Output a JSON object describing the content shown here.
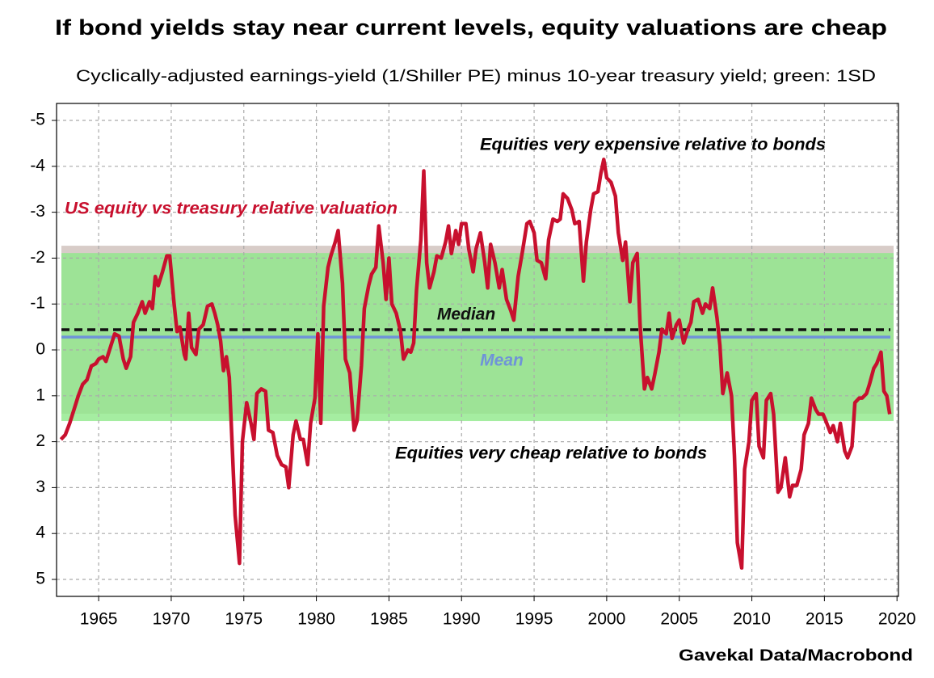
{
  "chart_data": {
    "type": "line",
    "title": "If bond yields stay near current levels, equity valuations are cheap",
    "subtitle": "Cyclically-adjusted earnings-yield (1/Shiller PE) minus 10-year treasury yield; green: 1SD",
    "source": "Gavekal Data/Macrobond",
    "annotations": [
      "Equities very expensive relative to bonds",
      "Equities very cheap relative to bonds"
    ],
    "xlim": [
      1962.1,
      2020.1
    ],
    "xticks": [
      1965,
      1970,
      1975,
      1980,
      1985,
      1990,
      1995,
      2000,
      2005,
      2010,
      2015,
      2020
    ],
    "ylim": [
      5.37,
      -5.37
    ],
    "yticks": [
      5,
      4,
      3,
      2,
      1,
      0,
      -1,
      -2,
      -3,
      -4,
      -5
    ],
    "grid": true,
    "bands": [
      {
        "from": -2.27,
        "to": 1.39,
        "color": "#d8ccc8"
      },
      {
        "from": -2.11,
        "to": 1.55,
        "color": "#8ee88a"
      }
    ],
    "reference_lines": [
      {
        "label": "Median",
        "value": -0.44,
        "color": "#111111",
        "dashed": true
      },
      {
        "label": "Mean",
        "value": -0.28,
        "color": "#6f93d8",
        "dashed": false
      }
    ],
    "x": [
      1962.4,
      1962.7,
      1963.0,
      1963.3,
      1963.6,
      1963.9,
      1964.2,
      1964.5,
      1964.8,
      1965.0,
      1965.3,
      1965.5,
      1965.8,
      1966.1,
      1966.4,
      1966.7,
      1966.9,
      1967.2,
      1967.4,
      1967.7,
      1968.0,
      1968.2,
      1968.5,
      1968.7,
      1968.9,
      1969.1,
      1969.4,
      1969.7,
      1969.9,
      1970.2,
      1970.4,
      1970.6,
      1970.9,
      1971.0,
      1971.2,
      1971.4,
      1971.7,
      1971.9,
      1972.2,
      1972.5,
      1972.8,
      1973.0,
      1973.2,
      1973.4,
      1973.6,
      1973.8,
      1974.0,
      1974.2,
      1974.4,
      1974.7,
      1974.9,
      1975.2,
      1975.5,
      1975.7,
      1975.9,
      1976.2,
      1976.5,
      1976.7,
      1977.0,
      1977.3,
      1977.6,
      1977.9,
      1978.1,
      1978.4,
      1978.6,
      1978.9,
      1979.1,
      1979.4,
      1979.6,
      1979.9,
      1980.1,
      1980.3,
      1980.5,
      1980.8,
      1981.0,
      1981.3,
      1981.5,
      1981.8,
      1982.0,
      1982.3,
      1982.6,
      1982.8,
      1983.1,
      1983.3,
      1983.6,
      1983.8,
      1984.1,
      1984.3,
      1984.6,
      1984.8,
      1985.0,
      1985.2,
      1985.5,
      1985.8,
      1986.0,
      1986.3,
      1986.5,
      1986.7,
      1986.9,
      1987.2,
      1987.4,
      1987.6,
      1987.8,
      1988.1,
      1988.3,
      1988.6,
      1988.9,
      1989.1,
      1989.3,
      1989.6,
      1989.8,
      1990.0,
      1990.3,
      1990.5,
      1990.8,
      1991.0,
      1991.3,
      1991.6,
      1991.8,
      1992.0,
      1992.3,
      1992.6,
      1992.8,
      1993.1,
      1993.4,
      1993.6,
      1993.9,
      1994.2,
      1994.5,
      1994.7,
      1995.0,
      1995.2,
      1995.5,
      1995.8,
      1996.0,
      1996.3,
      1996.6,
      1996.8,
      1997.0,
      1997.3,
      1997.6,
      1997.8,
      1998.1,
      1998.4,
      1998.6,
      1998.9,
      1999.1,
      1999.4,
      1999.6,
      1999.8,
      2000.0,
      2000.3,
      2000.6,
      2000.8,
      2001.1,
      2001.3,
      2001.6,
      2001.8,
      2002.1,
      2002.3,
      2002.6,
      2002.8,
      2003.1,
      2003.3,
      2003.6,
      2003.8,
      2004.1,
      2004.3,
      2004.5,
      2004.8,
      2005.0,
      2005.3,
      2005.6,
      2005.8,
      2006.0,
      2006.3,
      2006.6,
      2006.8,
      2007.1,
      2007.3,
      2007.6,
      2007.8,
      2008.0,
      2008.3,
      2008.6,
      2008.8,
      2009.0,
      2009.3,
      2009.5,
      2009.8,
      2010.0,
      2010.3,
      2010.5,
      2010.8,
      2011.0,
      2011.3,
      2011.5,
      2011.8,
      2012.0,
      2012.3,
      2012.6,
      2012.8,
      2013.1,
      2013.4,
      2013.6,
      2013.9,
      2014.1,
      2014.4,
      2014.6,
      2014.9,
      2015.1,
      2015.4,
      2015.6,
      2015.9,
      2016.1,
      2016.4,
      2016.6,
      2016.9,
      2017.1,
      2017.4,
      2017.6,
      2017.9,
      2018.1,
      2018.4,
      2018.6,
      2018.9,
      2019.1,
      2019.3,
      2019.5
    ],
    "series": [
      {
        "name": "US equity vs treasury relative valuation",
        "color": "#c8102e",
        "values": [
          1.95,
          1.85,
          1.6,
          1.3,
          1.0,
          0.75,
          0.65,
          0.35,
          0.3,
          0.2,
          0.15,
          0.25,
          -0.05,
          -0.35,
          -0.3,
          0.2,
          0.4,
          0.15,
          -0.6,
          -0.8,
          -1.05,
          -0.8,
          -1.05,
          -0.9,
          -1.6,
          -1.4,
          -1.7,
          -2.05,
          -2.05,
          -1.0,
          -0.4,
          -0.5,
          0.1,
          0.2,
          -0.8,
          -0.05,
          0.1,
          -0.45,
          -0.55,
          -0.95,
          -1.0,
          -0.8,
          -0.55,
          -0.2,
          0.45,
          0.15,
          0.6,
          2.1,
          3.6,
          4.65,
          2.0,
          1.15,
          1.6,
          1.95,
          0.95,
          0.85,
          0.9,
          1.75,
          1.8,
          2.3,
          2.5,
          2.55,
          3.0,
          1.85,
          1.55,
          1.95,
          1.95,
          2.5,
          1.6,
          1.05,
          -0.35,
          1.6,
          -0.95,
          -1.8,
          -2.05,
          -2.35,
          -2.6,
          -1.45,
          0.2,
          0.5,
          1.75,
          1.55,
          0.35,
          -0.9,
          -1.4,
          -1.65,
          -1.8,
          -2.7,
          -1.9,
          -1.1,
          -2.0,
          -1.0,
          -0.8,
          -0.4,
          0.2,
          0.0,
          0.05,
          -0.15,
          -1.3,
          -2.4,
          -3.9,
          -1.9,
          -1.35,
          -1.7,
          -2.05,
          -2.0,
          -2.35,
          -2.7,
          -2.1,
          -2.6,
          -2.3,
          -2.75,
          -2.75,
          -2.2,
          -1.7,
          -2.2,
          -2.55,
          -1.9,
          -1.35,
          -2.3,
          -1.9,
          -1.35,
          -1.75,
          -1.1,
          -0.85,
          -0.65,
          -1.6,
          -2.15,
          -2.75,
          -2.8,
          -2.55,
          -1.95,
          -1.9,
          -1.55,
          -2.4,
          -2.85,
          -2.8,
          -2.85,
          -3.4,
          -3.3,
          -3.05,
          -2.75,
          -2.8,
          -1.5,
          -2.35,
          -3.05,
          -3.4,
          -3.45,
          -3.85,
          -4.15,
          -3.75,
          -3.65,
          -3.35,
          -2.55,
          -1.95,
          -2.35,
          -1.05,
          -1.9,
          -2.1,
          -0.55,
          0.85,
          0.6,
          0.85,
          0.55,
          0.05,
          -0.45,
          -0.35,
          -0.8,
          -0.25,
          -0.55,
          -0.65,
          -0.15,
          -0.45,
          -0.6,
          -1.05,
          -1.1,
          -0.8,
          -1.0,
          -0.9,
          -1.35,
          -0.7,
          -0.1,
          0.95,
          0.5,
          1.0,
          2.3,
          4.2,
          4.75,
          2.6,
          2.0,
          1.1,
          0.95,
          2.1,
          2.35,
          1.1,
          0.95,
          1.4,
          3.1,
          3.0,
          2.35,
          3.2,
          2.95,
          2.95,
          2.6,
          1.85,
          1.6,
          1.05,
          1.3,
          1.4,
          1.4,
          1.55,
          1.8,
          1.65,
          2.0,
          1.6,
          2.2,
          2.35,
          2.1,
          1.15,
          1.05,
          1.05,
          0.95,
          0.75,
          0.4,
          0.3,
          0.05,
          0.9,
          1.0,
          1.4
        ]
      }
    ]
  }
}
